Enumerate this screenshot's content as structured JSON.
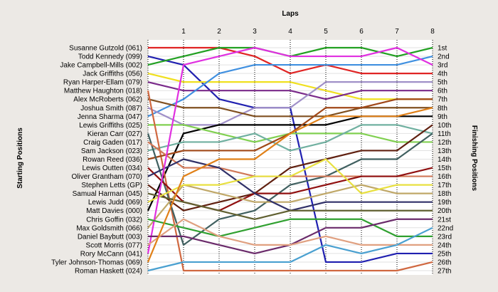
{
  "chart_data": {
    "type": "line",
    "title": "",
    "xlabel": "Laps",
    "ylabel_left": "Starting Positions",
    "ylabel_right": "Finishing Positions",
    "x_ticks": [
      "1",
      "2",
      "3",
      "4",
      "5",
      "6",
      "7",
      "8"
    ],
    "finishing_labels": [
      "1st",
      "2nd",
      "3rd",
      "4th",
      "5th",
      "6th",
      "7th",
      "8th",
      "9th",
      "10th",
      "11th",
      "12th",
      "13th",
      "14th",
      "15th",
      "16th",
      "17th",
      "18th",
      "19th",
      "20th",
      "21st",
      "22nd",
      "23rd",
      "24th",
      "25th",
      "26th",
      "27th"
    ],
    "ylim": [
      1,
      27
    ],
    "grid": true,
    "series": [
      {
        "name": "Susanne Gutzold (061)",
        "color": "#e02424",
        "positions": [
          1,
          1,
          1,
          2,
          4,
          3,
          4,
          4,
          4
        ]
      },
      {
        "name": "Todd Kennedy (099)",
        "color": "#2020b0",
        "positions": [
          2,
          3,
          7,
          8,
          8,
          26,
          26,
          25,
          25
        ]
      },
      {
        "name": "Jake Campbell-Mills (002)",
        "color": "#22a022",
        "positions": [
          3,
          2,
          1,
          1,
          2,
          1,
          1,
          2,
          1
        ]
      },
      {
        "name": "Jack Griffiths (056)",
        "color": "#f0e020",
        "positions": [
          4,
          5,
          5,
          5,
          5,
          6,
          7,
          7,
          7
        ]
      },
      {
        "name": "Ryan Harper-Ellam (079)",
        "color": "#7a2a8a",
        "positions": [
          5,
          6,
          6,
          6,
          6,
          7,
          6,
          6,
          6
        ]
      },
      {
        "name": "Jenna Sharma (047)",
        "color": "#4090e0",
        "positions": [
          9,
          7,
          4,
          3,
          3,
          3,
          3,
          3,
          2
        ]
      },
      {
        "name": "Joshua Smith (087)",
        "color": "#a090c8",
        "positions": [
          8,
          10,
          10,
          8,
          8,
          5,
          5,
          5,
          5
        ]
      },
      {
        "name": "Alex McRoberts (062)",
        "color": "#805020",
        "positions": [
          7,
          8,
          8,
          9,
          9,
          9,
          8,
          8,
          8
        ]
      },
      {
        "name": "Matt Davies (000)",
        "color": "#000000",
        "positions": [
          20,
          11,
          10,
          10,
          10,
          10,
          9,
          9,
          9
        ]
      },
      {
        "name": "Lewis Griffiths (025)",
        "color": "#80d050",
        "positions": [
          10,
          10,
          11,
          12,
          11,
          11,
          11,
          12,
          12
        ]
      },
      {
        "name": "Sam Jackson (023)",
        "color": "#70b0a0",
        "positions": [
          13,
          12,
          12,
          11,
          13,
          12,
          10,
          10,
          11
        ]
      },
      {
        "name": "Matthew Haughton (018)",
        "color": "#d06840",
        "positions": [
          6,
          27,
          27,
          27,
          27,
          27,
          27,
          27,
          26
        ]
      },
      {
        "name": "Rowan Reed (036)",
        "color": "#a04818",
        "positions": [
          14,
          13,
          13,
          13,
          11,
          8,
          8,
          7,
          7
        ]
      },
      {
        "name": "Kieran Carr (027)",
        "color": "#406060",
        "positions": [
          11,
          24,
          21,
          20,
          17,
          16,
          14,
          14,
          11
        ]
      },
      {
        "name": "Craig Gaden (017)",
        "color": "#d07858",
        "positions": [
          12,
          15,
          15,
          16,
          16,
          16,
          16,
          16,
          16
        ]
      },
      {
        "name": "Stephen Letts (GP)",
        "color": "#602010",
        "positions": [
          17,
          20,
          19,
          18,
          15,
          14,
          13,
          13,
          10
        ]
      },
      {
        "name": "Lewis Outten (034)",
        "color": "#901010",
        "positions": [
          15,
          19,
          20,
          18,
          18,
          17,
          16,
          16,
          15
        ]
      },
      {
        "name": "Max Goldsmith (066)",
        "color": "#c0a868",
        "positions": [
          22,
          17,
          18,
          19,
          19,
          18,
          17,
          18,
          18
        ]
      },
      {
        "name": "Oliver Grantham (070)",
        "color": "#303068",
        "positions": [
          16,
          14,
          15,
          18,
          20,
          19,
          19,
          19,
          19
        ]
      },
      {
        "name": "Samual Harman (045)",
        "color": "#606030",
        "positions": [
          18,
          19,
          20,
          21,
          20,
          20,
          20,
          20,
          20
        ]
      },
      {
        "name": "Lewis Judd (069)",
        "color": "#e8e040",
        "positions": [
          19,
          17,
          17,
          16,
          16,
          14,
          18,
          17,
          17
        ]
      },
      {
        "name": "Rory McCann (041)",
        "color": "#e030e0",
        "positions": [
          25,
          3,
          2,
          1,
          2,
          2,
          2,
          1,
          3
        ]
      },
      {
        "name": "Chris Goffin (032)",
        "color": "#30a030",
        "positions": [
          21,
          22,
          23,
          22,
          21,
          21,
          21,
          23,
          23
        ]
      },
      {
        "name": "Daniel Baybutt (003)",
        "color": "#6a2a6a",
        "positions": [
          23,
          23,
          24,
          25,
          24,
          22,
          22,
          21,
          21
        ]
      },
      {
        "name": "Scott Morris (077)",
        "color": "#e0a080",
        "positions": [
          24,
          21,
          23,
          24,
          24,
          23,
          24,
          24,
          24
        ]
      },
      {
        "name": "Tyler Johnson-Thomas (069)",
        "color": "#e08018",
        "positions": [
          26,
          16,
          14,
          14,
          11,
          9,
          9,
          9,
          8
        ]
      },
      {
        "name": "Roman Haskett (024)",
        "color": "#4aa0d0",
        "positions": [
          27,
          26,
          26,
          26,
          26,
          24,
          25,
          24,
          22
        ]
      }
    ]
  }
}
